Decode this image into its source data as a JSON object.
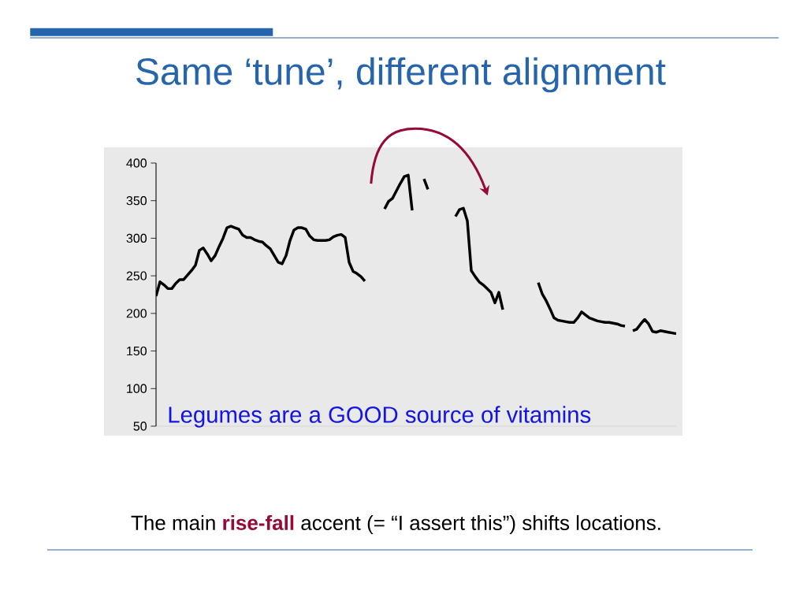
{
  "chart_data": {
    "type": "line",
    "title": "Same ‘tune’, different alignment",
    "annotations": [
      "Legumes are a GOOD source of vitamins",
      "The main **rise-fall** accent (= “I assert this”) shifts locations."
    ],
    "categories": [
      null,
      null,
      null,
      null,
      null,
      null,
      null,
      null,
      null,
      null,
      null,
      null,
      null,
      null,
      null,
      null,
      null,
      null,
      null,
      null,
      null,
      null,
      null,
      null,
      null,
      null,
      null,
      null,
      null,
      null,
      null,
      null,
      null,
      null,
      null,
      null,
      null,
      null,
      null,
      null,
      null,
      null,
      null,
      null,
      null,
      null,
      null,
      null,
      null,
      null,
      null,
      null,
      null,
      null,
      null,
      null,
      null,
      null,
      null,
      null,
      null,
      null,
      null,
      null,
      null,
      null,
      null,
      null,
      null,
      null,
      null,
      null,
      null,
      null,
      null,
      null,
      null,
      null,
      null,
      null,
      null,
      null,
      null,
      null,
      null,
      null,
      null,
      null,
      null,
      null,
      null,
      null,
      null,
      null,
      null,
      null,
      null,
      null,
      null,
      null,
      null,
      null,
      null,
      null,
      null,
      null,
      null,
      null,
      null,
      null,
      null,
      null,
      null,
      null,
      null,
      null,
      null,
      null,
      null,
      null,
      null,
      null,
      null,
      null,
      null,
      null,
      null,
      null,
      null,
      null,
      null,
      null,
      null
    ],
    "series": [
      {
        "color": "#000000",
        "values": [
          223,
          242,
          238,
          233,
          233,
          240,
          245,
          245,
          251,
          257,
          264,
          284,
          287,
          279,
          270,
          277,
          289,
          300,
          314,
          316,
          314,
          312,
          304,
          301,
          301,
          298,
          296,
          295,
          290,
          286,
          277,
          268,
          266,
          277,
          297,
          311,
          314,
          314,
          312,
          303,
          298,
          297,
          297,
          297,
          298,
          302,
          304,
          305,
          301,
          268,
          256,
          253,
          249,
          243,
          null,
          null,
          null,
          null,
          null,
          null,
          null,
          null,
          null,
          null,
          null,
          null,
          null,
          null,
          null,
          null,
          null,
          null,
          null,
          null,
          null,
          null,
          null,
          null,
          null,
          null,
          null,
          null,
          null,
          null,
          null,
          null,
          null,
          null,
          null,
          null,
          null,
          null,
          null,
          null,
          null,
          null,
          null,
          null,
          null,
          null,
          null,
          null,
          null,
          null,
          null,
          null,
          null,
          null,
          null,
          null,
          null,
          null,
          null,
          null,
          null,
          null,
          null,
          null,
          null,
          null,
          null,
          null,
          null,
          null,
          null,
          null,
          null,
          null,
          null,
          null,
          null,
          null,
          null
        ]
      },
      {
        "color": "#000000",
        "values": [
          null,
          null,
          null,
          null,
          null,
          null,
          null,
          null,
          null,
          null,
          null,
          null,
          null,
          null,
          null,
          null,
          null,
          null,
          null,
          null,
          null,
          null,
          null,
          null,
          null,
          null,
          null,
          null,
          null,
          null,
          null,
          null,
          null,
          null,
          null,
          null,
          null,
          null,
          null,
          null,
          null,
          null,
          null,
          null,
          null,
          null,
          null,
          null,
          null,
          null,
          null,
          null,
          null,
          null,
          null,
          null,
          null,
          null,
          339,
          349,
          353,
          363,
          373,
          382,
          384,
          337,
          null,
          null,
          null,
          null,
          null,
          null,
          null,
          null,
          null,
          null,
          null,
          null,
          null,
          null,
          null,
          null,
          null,
          null,
          null,
          null,
          null,
          null,
          null,
          null,
          null,
          null,
          null,
          null,
          null,
          null,
          null,
          null,
          null,
          null,
          null,
          null,
          null,
          null,
          null,
          null,
          null,
          null,
          null,
          null,
          null,
          null,
          null,
          null,
          null,
          null,
          null,
          null,
          null,
          null,
          null,
          null,
          null,
          null,
          null,
          null,
          null,
          null,
          null,
          null,
          null,
          null,
          null
        ]
      },
      {
        "color": "#000000",
        "values": [
          null,
          null,
          null,
          null,
          null,
          null,
          null,
          null,
          null,
          null,
          null,
          null,
          null,
          null,
          null,
          null,
          null,
          null,
          null,
          null,
          null,
          null,
          null,
          null,
          null,
          null,
          null,
          null,
          null,
          null,
          null,
          null,
          null,
          null,
          null,
          null,
          null,
          null,
          null,
          null,
          null,
          null,
          null,
          null,
          null,
          null,
          null,
          null,
          null,
          null,
          null,
          null,
          null,
          null,
          null,
          null,
          null,
          null,
          null,
          null,
          null,
          null,
          null,
          null,
          null,
          null,
          null,
          null,
          379,
          365,
          null,
          null,
          null,
          null,
          null,
          null,
          null,
          null,
          null,
          null,
          null,
          null,
          null,
          null,
          null,
          null,
          null,
          null,
          null,
          null,
          null,
          null,
          null,
          null,
          null,
          null,
          null,
          null,
          null,
          null,
          null,
          null,
          null,
          null,
          null,
          null,
          null,
          null,
          null,
          null,
          null,
          null,
          null,
          null,
          null,
          null,
          null,
          null,
          null,
          null,
          null,
          null,
          null,
          null,
          null,
          null,
          null,
          null,
          null,
          null,
          null,
          null,
          null
        ]
      },
      {
        "color": "#000000",
        "values": [
          null,
          null,
          null,
          null,
          null,
          null,
          null,
          null,
          null,
          null,
          null,
          null,
          null,
          null,
          null,
          null,
          null,
          null,
          null,
          null,
          null,
          null,
          null,
          null,
          null,
          null,
          null,
          null,
          null,
          null,
          null,
          null,
          null,
          null,
          null,
          null,
          null,
          null,
          null,
          null,
          null,
          null,
          null,
          null,
          null,
          null,
          null,
          null,
          null,
          null,
          null,
          null,
          null,
          null,
          null,
          null,
          null,
          null,
          null,
          null,
          null,
          null,
          null,
          null,
          null,
          null,
          null,
          null,
          null,
          null,
          null,
          null,
          null,
          null,
          null,
          null,
          329,
          338,
          340,
          323,
          257,
          249,
          242,
          238,
          233,
          228,
          214,
          228,
          205,
          null,
          null,
          null,
          null,
          null,
          null,
          null,
          null,
          null,
          null,
          null,
          null,
          null,
          null,
          null,
          null,
          null,
          null,
          null,
          null,
          null,
          null,
          null,
          null,
          null,
          null,
          null,
          null,
          null,
          null,
          null,
          null,
          null,
          null,
          null,
          null,
          null,
          null,
          null,
          null,
          null,
          null,
          null,
          null
        ]
      },
      {
        "color": "#000000",
        "values": [
          null,
          null,
          null,
          null,
          null,
          null,
          null,
          null,
          null,
          null,
          null,
          null,
          null,
          null,
          null,
          null,
          null,
          null,
          null,
          null,
          null,
          null,
          null,
          null,
          null,
          null,
          null,
          null,
          null,
          null,
          null,
          null,
          null,
          null,
          null,
          null,
          null,
          null,
          null,
          null,
          null,
          null,
          null,
          null,
          null,
          null,
          null,
          null,
          null,
          null,
          null,
          null,
          null,
          null,
          null,
          null,
          null,
          null,
          null,
          null,
          null,
          null,
          null,
          null,
          null,
          null,
          null,
          null,
          null,
          null,
          null,
          null,
          null,
          null,
          null,
          null,
          null,
          null,
          null,
          null,
          null,
          null,
          null,
          null,
          null,
          null,
          null,
          null,
          null,
          null,
          null,
          null,
          null,
          null,
          null,
          null,
          null,
          241,
          226,
          217,
          206,
          194,
          191,
          190,
          189,
          188,
          188,
          194,
          202,
          198,
          194,
          192,
          190,
          189,
          188,
          188,
          187,
          186,
          184,
          183,
          null,
          null,
          null,
          null,
          null,
          null,
          null,
          null,
          null,
          null,
          null,
          null,
          null
        ]
      },
      {
        "color": "#000000",
        "values": [
          null,
          null,
          null,
          null,
          null,
          null,
          null,
          null,
          null,
          null,
          null,
          null,
          null,
          null,
          null,
          null,
          null,
          null,
          null,
          null,
          null,
          null,
          null,
          null,
          null,
          null,
          null,
          null,
          null,
          null,
          null,
          null,
          null,
          null,
          null,
          null,
          null,
          null,
          null,
          null,
          null,
          null,
          null,
          null,
          null,
          null,
          null,
          null,
          null,
          null,
          null,
          null,
          null,
          null,
          null,
          null,
          null,
          null,
          null,
          null,
          null,
          null,
          null,
          null,
          null,
          null,
          null,
          null,
          null,
          null,
          null,
          null,
          null,
          null,
          null,
          null,
          null,
          null,
          null,
          null,
          null,
          null,
          null,
          null,
          null,
          null,
          null,
          null,
          null,
          null,
          null,
          null,
          null,
          null,
          null,
          null,
          null,
          null,
          null,
          null,
          null,
          null,
          null,
          null,
          null,
          null,
          null,
          null,
          null,
          null,
          null,
          null,
          null,
          null,
          null,
          null,
          null,
          null,
          null,
          null,
          null,
          177,
          179,
          186,
          192,
          186,
          176,
          175,
          177,
          176,
          175,
          174,
          173
        ]
      }
    ],
    "ylim": [
      50,
      400
    ],
    "yticks": [
      50,
      100,
      150,
      200,
      250,
      300,
      350,
      400
    ],
    "tick_labels": "y"
  }
}
